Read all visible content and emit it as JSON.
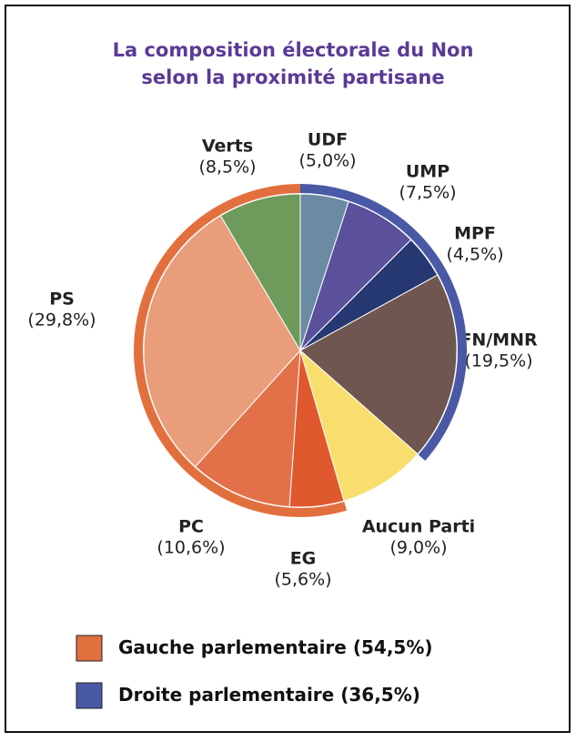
{
  "chart_data": {
    "type": "pie",
    "title": [
      "La composition électorale du Non",
      "selon la proximité partisane"
    ],
    "categories": [
      "UDF",
      "UMP",
      "MPF",
      "FN/MNR",
      "Aucun Parti",
      "EG",
      "PC",
      "PS",
      "Verts"
    ],
    "values": [
      5.0,
      7.5,
      4.5,
      19.5,
      9.0,
      5.6,
      10.6,
      29.8,
      8.5
    ],
    "value_labels": [
      "(5,0%)",
      "(7,5%)",
      "(4,5%)",
      "(19,5%)",
      "(9,0%)",
      "(5,6%)",
      "(10,6%)",
      "(29,8%)",
      "(8,5%)"
    ],
    "colors": [
      "#6b8ba3",
      "#5a509c",
      "#263872",
      "#6f5650",
      "#f8de6c",
      "#e0582e",
      "#e2714a",
      "#e99d7b",
      "#6e9a5b"
    ],
    "groups": [
      {
        "name": "Droite parlementaire",
        "value": 36.5,
        "value_label": "(36,5%)",
        "color": "#4a59a6",
        "direction": "clockwise"
      },
      {
        "name": "Gauche parlementaire",
        "value": 54.5,
        "value_label": "(54,5%)",
        "color": "#e2703e",
        "direction": "counterclockwise"
      }
    ]
  }
}
